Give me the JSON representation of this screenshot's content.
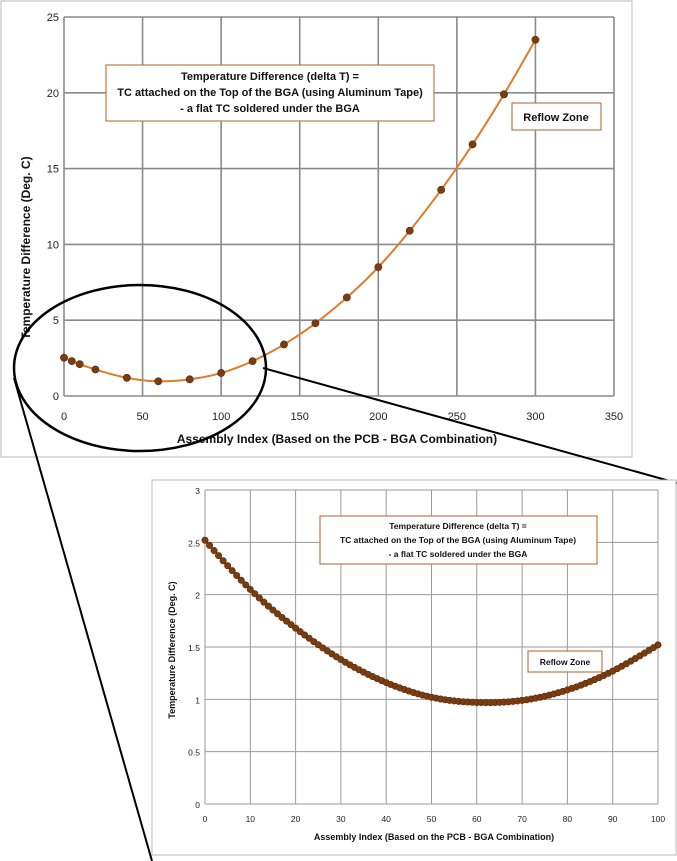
{
  "chart_data": [
    {
      "type": "line",
      "xlabel": "Assembly Index (Based on the PCB - BGA Combination)",
      "ylabel": "Temperature Difference (Deg. C)",
      "xlim": [
        0,
        350
      ],
      "ylim": [
        0,
        25
      ],
      "xticks": [
        0,
        50,
        100,
        150,
        200,
        250,
        300,
        350
      ],
      "yticks": [
        0,
        5,
        10,
        15,
        20,
        25
      ],
      "grid": true,
      "annotation_lines": [
        "Temperature Difference  (delta T) =",
        "TC  attached on the Top of the BGA (using Aluminum Tape)",
        "- a flat TC  soldered under the BGA"
      ],
      "label_box": "Reflow Zone",
      "series": [
        {
          "x": [
            0,
            5,
            10,
            20,
            40,
            60,
            80,
            100,
            120,
            140,
            160,
            180,
            200,
            220,
            240,
            260,
            280,
            300
          ],
          "y": [
            2.52,
            2.3,
            2.1,
            1.75,
            1.2,
            0.97,
            1.1,
            1.52,
            2.3,
            3.4,
            4.8,
            6.5,
            8.5,
            10.9,
            13.6,
            16.6,
            19.9,
            23.5
          ]
        }
      ]
    },
    {
      "type": "line",
      "xlabel": "Assembly Index (Based on the PCB - BGA Combination)",
      "ylabel": "Temperature Difference (Deg. C)",
      "xlim": [
        0,
        100
      ],
      "ylim": [
        0,
        3
      ],
      "xticks": [
        0,
        10,
        20,
        30,
        40,
        50,
        60,
        70,
        80,
        90,
        100
      ],
      "yticks": [
        0,
        0.5,
        1,
        1.5,
        2,
        2.5,
        3
      ],
      "grid": true,
      "annotation_lines": [
        "Temperature Difference  (delta T) =",
        "TC  attached on the Top of the BGA (using Aluminum Tape)",
        "- a flat TC  soldered under the BGA"
      ],
      "label_box": "Reflow Zone",
      "series": [
        {
          "x_start": 0,
          "x_end": 100,
          "x_step": 1,
          "y_sampled": {
            "x": [
              0,
              10,
              20,
              30,
              40,
              50,
              60,
              70,
              80,
              90,
              100
            ],
            "y": [
              2.52,
              2.05,
              1.68,
              1.38,
              1.16,
              1.02,
              0.97,
              0.99,
              1.09,
              1.27,
              1.52
            ]
          }
        }
      ]
    }
  ]
}
